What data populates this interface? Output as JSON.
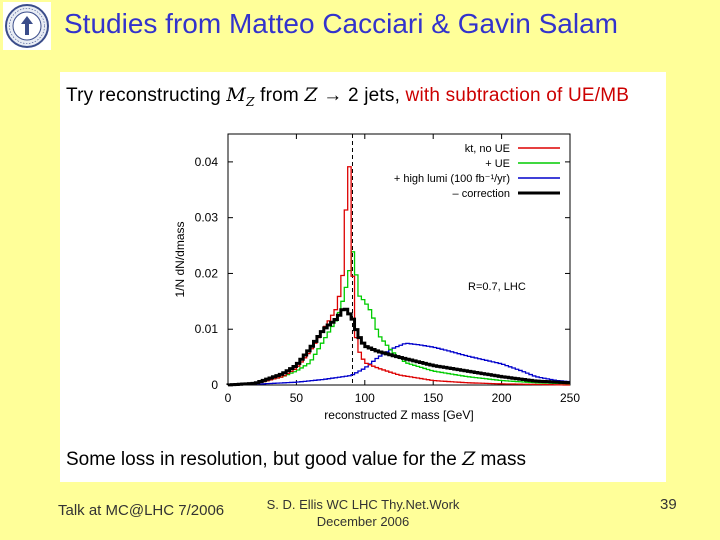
{
  "slide": {
    "title": "Studies from Matteo Cacciari & Gavin Salam",
    "footer_left": "Talk at MC@LHC 7/2006",
    "footer_center_line1": "S. D. Ellis   WC LHC Thy.Net.Work",
    "footer_center_line2": "December 2006",
    "page_number": "39"
  },
  "panel": {
    "heading_prefix": "Try reconstructing ",
    "heading_mz": "M",
    "heading_mz_sub": "Z",
    "heading_from": " from ",
    "heading_z": "Z",
    "heading_arrow": " → 2 jets, ",
    "heading_highlight": "with subtraction of UE/MB",
    "caption_prefix": "Some loss in resolution, but good value for the ",
    "caption_z": "Z",
    "caption_suffix": " mass"
  },
  "chart_data": {
    "type": "line",
    "title": "",
    "xlabel": "reconstructed Z mass [GeV]",
    "ylabel": "1/N dN/dmass",
    "xlim": [
      0,
      250
    ],
    "ylim": [
      0,
      0.045
    ],
    "xticks": [
      0,
      50,
      100,
      150,
      200,
      250
    ],
    "yticks": [
      0,
      0.01,
      0.02,
      0.03,
      0.04
    ],
    "ytick_labels": [
      "0",
      "0.01",
      "0.02",
      "0.03",
      "0.04"
    ],
    "reference_line_x": 91,
    "annotation": "R=0.7, LHC",
    "series": [
      {
        "name": "kt, no UE",
        "color": "#dd0000",
        "x": [
          0,
          20,
          40,
          50,
          60,
          70,
          75,
          80,
          84,
          86,
          88,
          90,
          91,
          92,
          94,
          96,
          100,
          110,
          125,
          150,
          175,
          200,
          225,
          250
        ],
        "y": [
          0,
          0.0002,
          0.0015,
          0.003,
          0.006,
          0.01,
          0.012,
          0.014,
          0.02,
          0.03,
          0.041,
          0.036,
          0.022,
          0.012,
          0.008,
          0.006,
          0.004,
          0.003,
          0.0018,
          0.0008,
          0.0004,
          0.0002,
          0.0001,
          0
        ]
      },
      {
        "name": "+ UE",
        "color": "#00cc00",
        "x": [
          0,
          20,
          40,
          50,
          60,
          70,
          80,
          85,
          90,
          92,
          94,
          96,
          100,
          105,
          110,
          120,
          130,
          150,
          175,
          200,
          225,
          250
        ],
        "y": [
          0,
          0.0002,
          0.0015,
          0.0025,
          0.004,
          0.008,
          0.012,
          0.016,
          0.022,
          0.025,
          0.019,
          0.016,
          0.015,
          0.013,
          0.009,
          0.006,
          0.004,
          0.0025,
          0.0015,
          0.0008,
          0.0004,
          0.0002
        ]
      },
      {
        "name": "+ high lumi (100 fb⁻¹/yr)",
        "color": "#0000cc",
        "x": [
          0,
          25,
          50,
          70,
          90,
          100,
          110,
          120,
          130,
          140,
          150,
          160,
          175,
          200,
          215,
          225,
          240,
          250
        ],
        "y": [
          0,
          0.0002,
          0.0005,
          0.001,
          0.0017,
          0.003,
          0.005,
          0.0065,
          0.0075,
          0.0072,
          0.0068,
          0.0062,
          0.0052,
          0.0038,
          0.0025,
          0.0015,
          0.0008,
          0.0006
        ]
      },
      {
        "name": "– correction",
        "color": "#000000",
        "x": [
          0,
          20,
          40,
          50,
          60,
          70,
          80,
          85,
          88,
          91,
          95,
          100,
          110,
          125,
          150,
          175,
          200,
          225,
          250
        ],
        "y": [
          0,
          0.0003,
          0.002,
          0.0035,
          0.0065,
          0.01,
          0.012,
          0.014,
          0.013,
          0.012,
          0.009,
          0.007,
          0.006,
          0.005,
          0.0035,
          0.0025,
          0.0015,
          0.0007,
          0.0004
        ]
      }
    ]
  }
}
